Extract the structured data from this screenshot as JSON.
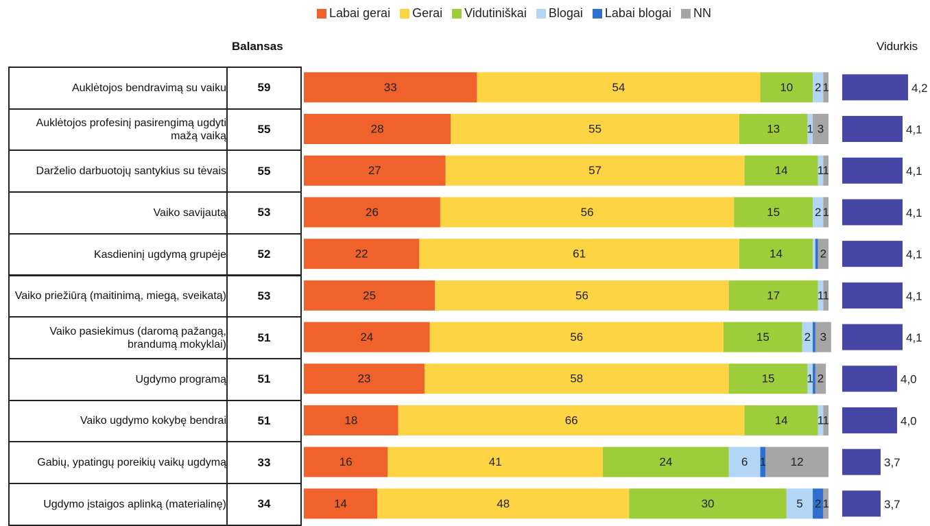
{
  "chart_data": {
    "type": "bar",
    "orientation": "horizontal",
    "stacked": true,
    "categories": [
      "Auklėtojos bendravimą su vaiku",
      "Auklėtojos profesinį pasirengimą ugdyti mažą vaiką",
      "Darželio darbuotojų santykius su tėvais",
      "Vaiko savijautą",
      "Kasdieninį ugdymą grupėje",
      "Vaiko priežiūrą (maitinimą, miegą, sveikatą)",
      "Vaiko pasiekimus (daromą pažangą, brandumą mokyklai)",
      "Ugdymo programą",
      "Vaiko ugdymo kokybę bendrai",
      "Gabių, ypatingų poreikių vaikų ugdymą",
      "Ugdymo įstaigos aplinką (materialinę)"
    ],
    "series": [
      {
        "name": "Labai gerai",
        "color": "#f0622c",
        "values": [
          33,
          28,
          27,
          26,
          22,
          25,
          24,
          23,
          18,
          16,
          14
        ]
      },
      {
        "name": "Gerai",
        "color": "#fdd443",
        "values": [
          54,
          55,
          57,
          56,
          61,
          56,
          56,
          58,
          66,
          41,
          48
        ]
      },
      {
        "name": "Vidutiniškai",
        "color": "#9dcd3a",
        "values": [
          10,
          13,
          14,
          15,
          14,
          17,
          15,
          15,
          14,
          24,
          30
        ]
      },
      {
        "name": "Blogai",
        "color": "#b3d6f6",
        "values": [
          2,
          1,
          1,
          2,
          0.5,
          1,
          2,
          1,
          1,
          6,
          5
        ]
      },
      {
        "name": "Labai blogai",
        "color": "#2e6fd0",
        "values": [
          0,
          0,
          0,
          0,
          0.5,
          0,
          0.5,
          0.5,
          0,
          1,
          2
        ]
      },
      {
        "name": "NN",
        "color": "#a6a6a6",
        "values": [
          1,
          3,
          1,
          1,
          2,
          1,
          3,
          2,
          1,
          12,
          1
        ]
      }
    ],
    "xlim": [
      0,
      100
    ],
    "legend": "top",
    "balansas_title": "Balansas",
    "balansas": [
      59,
      55,
      55,
      53,
      52,
      53,
      51,
      51,
      51,
      33,
      34
    ],
    "vidurkis": {
      "title": "Vidurkis",
      "color": "#4646a6",
      "xlim": [
        3,
        4.6
      ],
      "values": [
        4.2,
        4.1,
        4.1,
        4.1,
        4.1,
        4.1,
        4.1,
        4.0,
        4.0,
        3.7,
        3.7
      ],
      "value_labels": [
        "4,2",
        "4,1",
        "4,1",
        "4,1",
        "4,1",
        "4,1",
        "4,1",
        "4,0",
        "4,0",
        "3,7",
        "3,7"
      ]
    }
  }
}
